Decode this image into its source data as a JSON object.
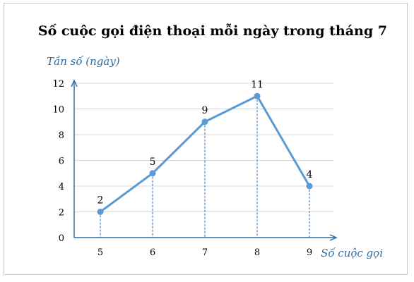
{
  "colors": {
    "line": "#5b9bd5",
    "axis": "#2e6da4",
    "grid": "#d9d9d9",
    "drop": "#2e6da4"
  },
  "chart_data": {
    "type": "line",
    "title": "Số cuộc gọi điện thoại mỗi ngày trong tháng 7",
    "xlabel": "Số cuộc gọi",
    "ylabel": "Tần số (ngày)",
    "categories": [
      "5",
      "6",
      "7",
      "8",
      "9"
    ],
    "values": [
      2,
      5,
      9,
      11,
      4
    ],
    "data_labels": [
      "2",
      "5",
      "9",
      "11",
      "4"
    ],
    "y_ticks": [
      "0",
      "2",
      "4",
      "6",
      "8",
      "10",
      "12"
    ],
    "ylim": [
      0,
      12
    ],
    "grid": true,
    "markers": true,
    "drop_lines": true
  }
}
